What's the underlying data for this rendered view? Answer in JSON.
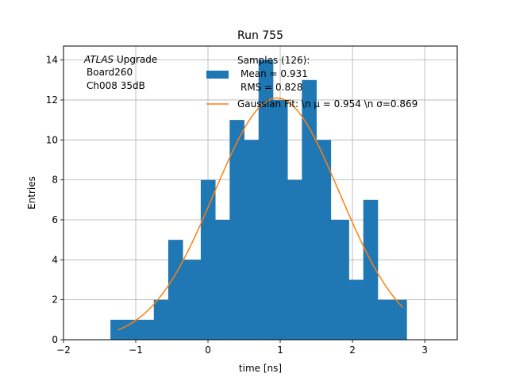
{
  "chart_data": {
    "type": "bar",
    "title": "Run 755",
    "xlabel": "time [ns]",
    "ylabel": "Entries",
    "xlim": [
      -2.0,
      3.45
    ],
    "ylim": [
      0,
      14.7
    ],
    "xticks": [
      -2,
      -1,
      0,
      1,
      2,
      3
    ],
    "xtick_labels": [
      "−2",
      "−1",
      "0",
      "1",
      "2",
      "3"
    ],
    "yticks": [
      0,
      2,
      4,
      6,
      8,
      10,
      12,
      14
    ],
    "grid": true,
    "annotation_lines": [
      {
        "italic": "ATLAS",
        "rest": " Upgrade"
      },
      {
        "italic": "",
        "rest": "Board260"
      },
      {
        "italic": "",
        "rest": "Ch008 35dB"
      }
    ],
    "legend": {
      "placement": "top-center",
      "hist_lines": [
        "Samples (126):",
        "Mean = 0.931",
        "RMS = 0.828"
      ],
      "fit_label": "Gaussian Fit: \\n μ = 0.954 \\n σ=0.869"
    },
    "histogram": {
      "bin_edges": [
        -1.35,
        -1.15,
        -0.95,
        -0.75,
        -0.55,
        -0.35,
        -0.1,
        0.1,
        0.3,
        0.5,
        0.7,
        0.9,
        1.1,
        1.3,
        1.5,
        1.7,
        1.95,
        2.15,
        2.35,
        2.55,
        2.75
      ],
      "counts": [
        1,
        1,
        1,
        2,
        5,
        4,
        8,
        6,
        11,
        10,
        14,
        12,
        8,
        13,
        10,
        6,
        3,
        7,
        2,
        2
      ],
      "color": "#1f77b4"
    },
    "fit": {
      "amplitude": 12.1,
      "mu": 0.954,
      "sigma": 0.869,
      "x_range": [
        -1.25,
        2.7
      ],
      "color": "#ff7f0e"
    }
  }
}
